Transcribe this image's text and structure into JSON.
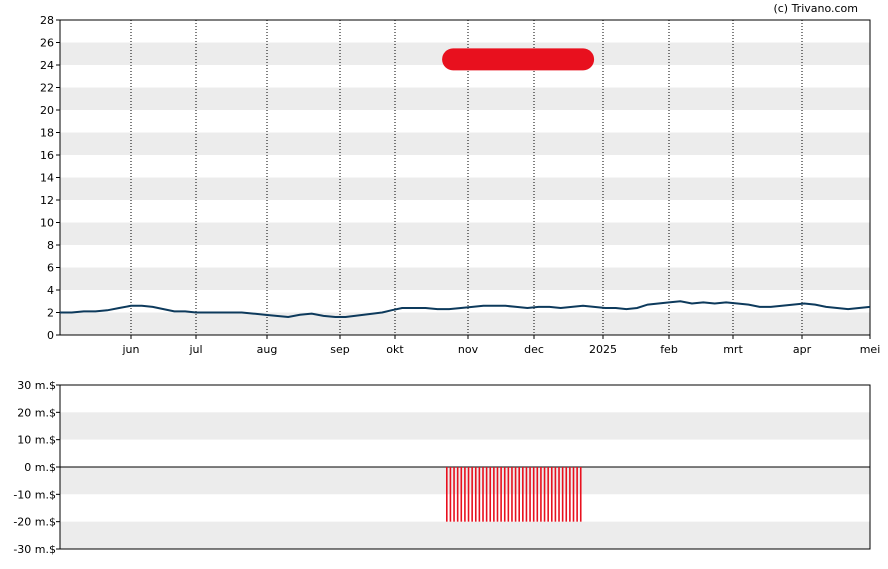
{
  "credit": "(c) Trivano.com",
  "chart_data": [
    {
      "type": "line",
      "ylim": [
        0,
        28
      ],
      "yticks": [
        0,
        2,
        4,
        6,
        8,
        10,
        12,
        14,
        16,
        18,
        20,
        22,
        24,
        26,
        28
      ],
      "x_tick_labels": [
        "jun",
        "jul",
        "aug",
        "sep",
        "okt",
        "nov",
        "dec",
        "2025",
        "feb",
        "mrt",
        "apr",
        "mei"
      ],
      "grid": "horizontal bands, vertical dotted at months",
      "series": [
        {
          "color": "#0d3a5c",
          "x": [
            0,
            5,
            10,
            15,
            20,
            25,
            30,
            35,
            40,
            45,
            50,
            55,
            60,
            65,
            70,
            75,
            80,
            85,
            90,
            95,
            100,
            105,
            110,
            115,
            120,
            125,
            130,
            135,
            140,
            145,
            150,
            155,
            160,
            165,
            170,
            175,
            180,
            185,
            190,
            195,
            200,
            205,
            210,
            215,
            220,
            225,
            230,
            235,
            240,
            245,
            250,
            255,
            260,
            265,
            270,
            275,
            280,
            285,
            290,
            295,
            300,
            305,
            310,
            315,
            320,
            325,
            330,
            335,
            340,
            345,
            350,
            355,
            360,
            365
          ],
          "values": [
            2.0,
            2.0,
            2.1,
            2.1,
            2.2,
            2.4,
            2.6,
            2.6,
            2.5,
            2.3,
            2.1,
            2.1,
            2.0,
            2.0,
            2.0,
            2.0,
            2.0,
            1.9,
            1.8,
            1.7,
            1.6,
            1.8,
            1.9,
            1.7,
            1.6,
            1.6,
            1.7,
            1.8,
            1.9,
            2.0,
            2.2,
            2.4,
            2.4,
            2.4,
            2.3,
            2.3,
            2.4,
            2.5,
            2.6,
            2.6,
            2.6,
            2.5,
            2.4,
            2.5,
            2.5,
            2.4,
            2.5,
            2.6,
            2.5,
            2.4,
            2.4,
            2.3,
            2.4,
            2.7,
            2.8,
            2.9,
            3.0,
            2.8,
            2.9,
            2.8,
            2.9,
            2.8,
            2.7,
            2.5,
            2.5,
            2.6,
            2.7,
            2.8,
            2.7,
            2.5,
            2.4,
            2.3,
            2.4,
            2.5
          ]
        }
      ],
      "highlight_band": {
        "from_x": 172,
        "to_x": 240,
        "y": 24.5,
        "color": "#e8101e"
      }
    },
    {
      "type": "bar",
      "ylim": [
        -30,
        30
      ],
      "ytick_labels": [
        "30 m.$",
        "20 m.$",
        "10 m.$",
        "0 m.$",
        "-10 m.$",
        "-20 m.$",
        "-30 m.$"
      ],
      "yticks": [
        30,
        20,
        10,
        0,
        -10,
        -20,
        -30
      ],
      "bar_color": "#e8101e",
      "bars_from_x": 174,
      "bars_to_x": 234,
      "bar_count": 38,
      "bar_value": -20
    }
  ]
}
